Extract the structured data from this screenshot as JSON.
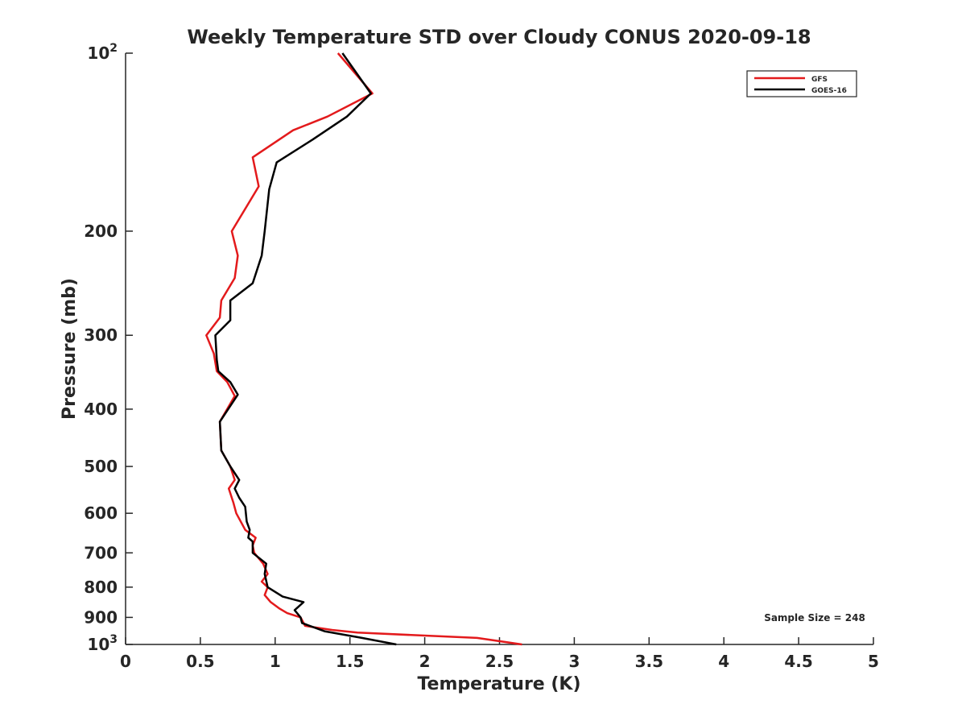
{
  "chart_data": {
    "type": "line",
    "title": "Weekly Temperature STD over Cloudy CONUS 2020-09-18",
    "xlabel": "Temperature (K)",
    "ylabel": "Pressure (mb)",
    "xlim": [
      0,
      5
    ],
    "ylim": [
      100,
      1000
    ],
    "y_scale": "log",
    "y_reversed": true,
    "x_ticks": [
      0,
      0.5,
      1,
      1.5,
      2,
      2.5,
      3,
      3.5,
      4,
      4.5,
      5
    ],
    "x_tick_labels": [
      "0",
      "0.5",
      "1",
      "1.5",
      "2",
      "2.5",
      "3",
      "3.5",
      "4",
      "4.5",
      "5"
    ],
    "y_ticks": [
      {
        "value": 100,
        "label": "10",
        "sup": "2"
      },
      {
        "value": 200,
        "label": "200",
        "sup": ""
      },
      {
        "value": 300,
        "label": "300",
        "sup": ""
      },
      {
        "value": 400,
        "label": "400",
        "sup": ""
      },
      {
        "value": 500,
        "label": "500",
        "sup": ""
      },
      {
        "value": 600,
        "label": "600",
        "sup": ""
      },
      {
        "value": 700,
        "label": "700",
        "sup": ""
      },
      {
        "value": 800,
        "label": "800",
        "sup": ""
      },
      {
        "value": 900,
        "label": "900",
        "sup": ""
      },
      {
        "value": 1000,
        "label": "10",
        "sup": "3"
      }
    ],
    "grid": false,
    "legend_position": "top-right",
    "annotation": "Sample Size = 248",
    "series": [
      {
        "name": "GFS",
        "color": "#e31a1c",
        "points": [
          [
            1.42,
            100
          ],
          [
            1.65,
            117
          ],
          [
            1.35,
            128
          ],
          [
            1.12,
            135
          ],
          [
            0.85,
            150
          ],
          [
            0.89,
            168
          ],
          [
            0.71,
            200
          ],
          [
            0.75,
            220
          ],
          [
            0.73,
            240
          ],
          [
            0.64,
            262
          ],
          [
            0.63,
            280
          ],
          [
            0.54,
            300
          ],
          [
            0.59,
            322
          ],
          [
            0.61,
            345
          ],
          [
            0.68,
            360
          ],
          [
            0.7,
            368
          ],
          [
            0.73,
            380
          ],
          [
            0.63,
            420
          ],
          [
            0.64,
            470
          ],
          [
            0.7,
            500
          ],
          [
            0.73,
            527
          ],
          [
            0.69,
            545
          ],
          [
            0.72,
            575
          ],
          [
            0.74,
            600
          ],
          [
            0.8,
            640
          ],
          [
            0.87,
            660
          ],
          [
            0.85,
            680
          ],
          [
            0.86,
            700
          ],
          [
            0.92,
            730
          ],
          [
            0.95,
            760
          ],
          [
            0.91,
            783
          ],
          [
            0.95,
            800
          ],
          [
            0.93,
            825
          ],
          [
            0.97,
            848
          ],
          [
            1.03,
            870
          ],
          [
            1.08,
            885
          ],
          [
            1.17,
            900
          ],
          [
            1.2,
            930
          ],
          [
            1.38,
            945
          ],
          [
            1.55,
            955
          ],
          [
            2.35,
            975
          ],
          [
            2.65,
            1000
          ]
        ]
      },
      {
        "name": "GOES-16",
        "color": "#000000",
        "points": [
          [
            1.45,
            100
          ],
          [
            1.64,
            117
          ],
          [
            1.48,
            128
          ],
          [
            1.25,
            140
          ],
          [
            1.01,
            153
          ],
          [
            0.96,
            170
          ],
          [
            0.93,
            200
          ],
          [
            0.91,
            220
          ],
          [
            0.85,
            245
          ],
          [
            0.7,
            262
          ],
          [
            0.7,
            283
          ],
          [
            0.6,
            300
          ],
          [
            0.61,
            330
          ],
          [
            0.62,
            345
          ],
          [
            0.7,
            360
          ],
          [
            0.75,
            378
          ],
          [
            0.63,
            420
          ],
          [
            0.64,
            470
          ],
          [
            0.7,
            500
          ],
          [
            0.76,
            527
          ],
          [
            0.73,
            545
          ],
          [
            0.76,
            565
          ],
          [
            0.8,
            585
          ],
          [
            0.81,
            620
          ],
          [
            0.83,
            640
          ],
          [
            0.82,
            660
          ],
          [
            0.85,
            670
          ],
          [
            0.85,
            700
          ],
          [
            0.94,
            730
          ],
          [
            0.93,
            760
          ],
          [
            0.95,
            800
          ],
          [
            1.05,
            830
          ],
          [
            1.19,
            848
          ],
          [
            1.13,
            875
          ],
          [
            1.17,
            900
          ],
          [
            1.18,
            920
          ],
          [
            1.33,
            950
          ],
          [
            1.58,
            975
          ],
          [
            1.81,
            1000
          ]
        ]
      }
    ]
  }
}
